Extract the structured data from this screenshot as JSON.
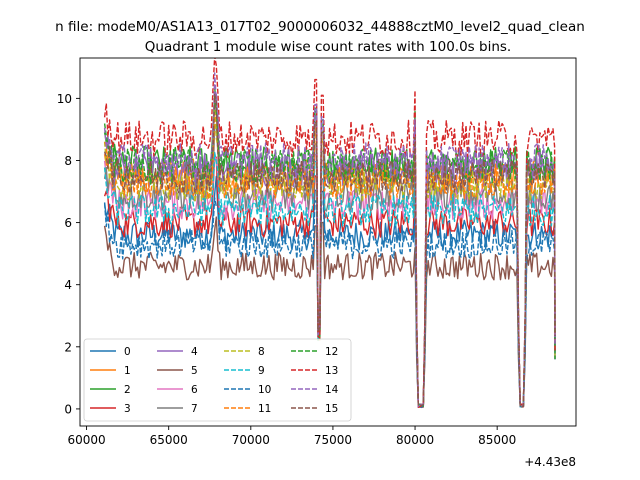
{
  "chart_data": {
    "type": "line",
    "suptitle": "n file: modeM0/AS1A13_017T02_9000006032_44888cztM0_level2_quad_clean",
    "title": "Quadrant 1 module wise count rates with 100.0s bins.",
    "xlabel": "",
    "ylabel": "",
    "x_offset_label": "+4.43e8",
    "xlim": [
      59600,
      89800
    ],
    "ylim": [
      -0.55,
      11.3
    ],
    "xticks": [
      60000,
      65000,
      70000,
      75000,
      80000,
      85000
    ],
    "yticks": [
      0,
      2,
      4,
      6,
      8,
      10
    ],
    "x_range_data": [
      61100,
      88500
    ],
    "bin_seconds": 100,
    "gaps": [
      {
        "start": 73900,
        "end": 74400,
        "type": "spike_dip"
      },
      {
        "start": 80050,
        "end": 80600,
        "type": "zero"
      },
      {
        "start": 86300,
        "end": 86700,
        "type": "zero"
      }
    ],
    "legend_location": "lower left",
    "legend_columns": 4,
    "series": [
      {
        "name": "0",
        "mean": 5.6,
        "color": "#1f77b4",
        "dash": "solid"
      },
      {
        "name": "1",
        "mean": 7.5,
        "color": "#ff7f0e",
        "dash": "solid"
      },
      {
        "name": "2",
        "mean": 7.9,
        "color": "#2ca02c",
        "dash": "solid"
      },
      {
        "name": "3",
        "mean": 6.0,
        "color": "#d62728",
        "dash": "solid"
      },
      {
        "name": "4",
        "mean": 7.7,
        "color": "#9467bd",
        "dash": "solid"
      },
      {
        "name": "5",
        "mean": 4.6,
        "color": "#8c564b",
        "dash": "solid"
      },
      {
        "name": "6",
        "mean": 6.6,
        "color": "#e377c2",
        "dash": "solid"
      },
      {
        "name": "7",
        "mean": 6.9,
        "color": "#7f7f7f",
        "dash": "solid"
      },
      {
        "name": "8",
        "mean": 7.2,
        "color": "#bcbd22",
        "dash": "dashed"
      },
      {
        "name": "9",
        "mean": 6.4,
        "color": "#17becf",
        "dash": "dashed"
      },
      {
        "name": "10",
        "mean": 5.3,
        "color": "#1f77b4",
        "dash": "dashed"
      },
      {
        "name": "11",
        "mean": 7.3,
        "color": "#ff7f0e",
        "dash": "dashed"
      },
      {
        "name": "12",
        "mean": 7.8,
        "color": "#2ca02c",
        "dash": "dashed"
      },
      {
        "name": "13",
        "mean": 8.7,
        "color": "#d62728",
        "dash": "dashed"
      },
      {
        "name": "14",
        "mean": 8.0,
        "color": "#9467bd",
        "dash": "dashed"
      },
      {
        "name": "15",
        "mean": 7.5,
        "color": "#8c564b",
        "dash": "dashed"
      }
    ]
  }
}
